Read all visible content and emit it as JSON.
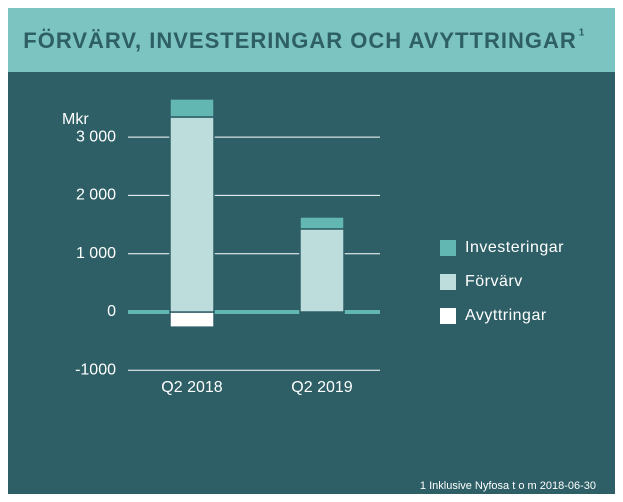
{
  "chart_data": {
    "type": "stacked_bar",
    "title": "FÖRVÄRV, INVESTERINGAR OCH AVYTTRINGAR",
    "title_note": "1",
    "y_label": "Mkr",
    "categories": [
      "Q2 2018",
      "Q2 2019"
    ],
    "series": [
      {
        "name": "Investeringar",
        "color": "#63b7b3",
        "values": [
          310,
          205
        ]
      },
      {
        "name": "Förvärv",
        "color": "#bcdddc",
        "values": [
          3345,
          1425
        ]
      },
      {
        "name": "Avyttringar",
        "color": "#ffffff",
        "values": [
          -260,
          -25
        ]
      }
    ],
    "ylim": [
      -1000,
      3800
    ],
    "yticks": [
      -1000,
      0,
      {
        "value": 1000,
        "label": "1 000"
      },
      {
        "value": 2000,
        "label": "2 000"
      },
      {
        "value": 3000,
        "label": "3 000"
      }
    ],
    "grid": true,
    "legend": "right",
    "footnote": "1 Inklusive Nyfosa t o m 2018-06-30"
  }
}
